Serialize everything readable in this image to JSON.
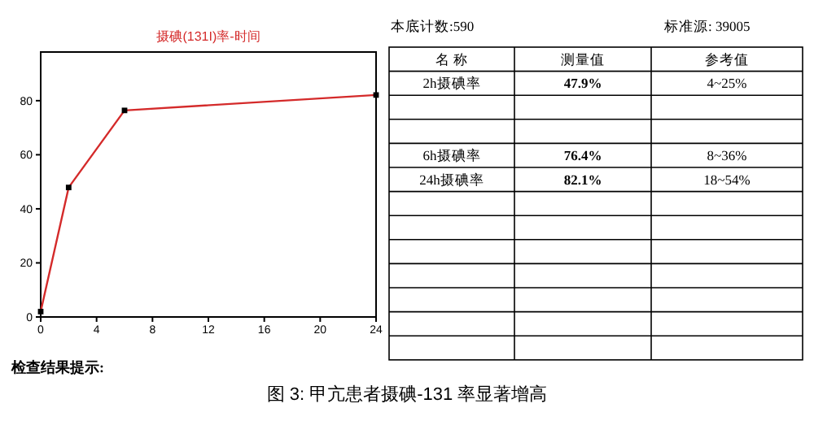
{
  "chart_data": [
    {
      "type": "line",
      "title": "摄碘(131I)率-时间",
      "x": [
        0,
        2,
        6,
        24
      ],
      "series": [
        {
          "color": "#d42a2a",
          "values": [
            2,
            47.9,
            76.4,
            82.1
          ]
        }
      ],
      "xlim": [
        0,
        24
      ],
      "xticks": [
        0,
        4,
        8,
        12,
        16,
        20,
        24
      ],
      "ylim": [
        0,
        98
      ],
      "yticks": [
        0,
        20,
        40,
        60,
        80
      ],
      "marker": "square",
      "grid": false,
      "annotations": [
        "检查结果提示:",
        "图 3: 甲亢患者摄碘-131 率显著增高"
      ]
    },
    {
      "type": "other",
      "annotations": [
        "本底计数:590",
        "标准源: 39005"
      ],
      "xlabel": "名 称",
      "categories": [
        "2h摄碘率",
        null,
        null,
        "6h摄碘率",
        "24h摄碘率",
        null,
        null,
        null,
        null,
        null,
        null,
        null
      ],
      "series": [
        {
          "name": "测量值",
          "values": [
            47.9,
            null,
            null,
            76.4,
            82.1,
            null,
            null,
            null,
            null,
            null,
            null,
            null
          ],
          "value_labels": [
            "47.9%",
            null,
            null,
            "76.4%",
            "82.1%",
            null,
            null,
            null,
            null,
            null,
            null,
            null
          ]
        },
        {
          "name": "参考值",
          "values": [
            null,
            null,
            null,
            null,
            null,
            null,
            null,
            null,
            null,
            null,
            null,
            null
          ],
          "value_labels": [
            "4~25%",
            null,
            null,
            "8~36%",
            "18~54%",
            null,
            null,
            null,
            null,
            null,
            null,
            null
          ]
        }
      ]
    }
  ]
}
